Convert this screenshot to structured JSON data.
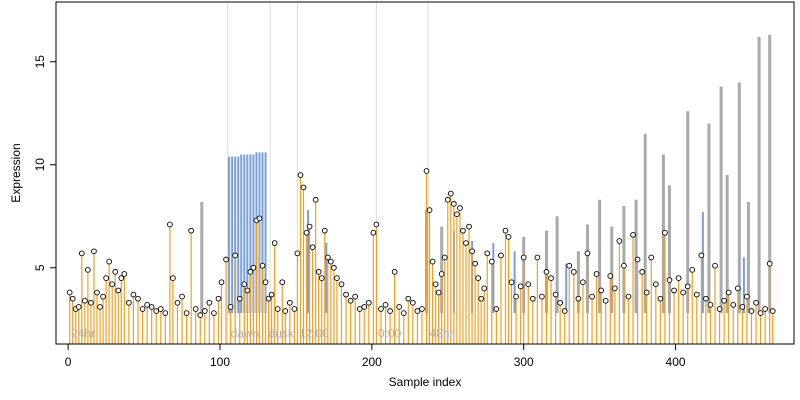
{
  "chart_data": {
    "type": "line",
    "xlabel": "Sample index",
    "ylabel": "Expression",
    "xlim": [
      -8,
      478
    ],
    "ylim": [
      1.3,
      17.9
    ],
    "x_ticks": [
      0,
      100,
      200,
      300,
      400
    ],
    "y_ticks": [
      5,
      10,
      15
    ],
    "grid": false,
    "legend": "none",
    "colors": {
      "gray_line": "#aaaaaa",
      "blue_line": "#7a9fd8",
      "orange_stem": "#f0a020",
      "points": "#000000",
      "vertical_guides": "#dddddd",
      "annotation": "#b0b0b0",
      "axis": "#000000"
    },
    "annotations": [
      {
        "text": "24hr",
        "x": 2,
        "y": 1.8
      },
      {
        "text": "dawn",
        "x": 107,
        "y": 1.8
      },
      {
        "text": "dusk",
        "x": 132,
        "y": 1.8
      },
      {
        "text": "12:00",
        "x": 152,
        "y": 1.8
      },
      {
        "text": "0:00",
        "x": 204,
        "y": 1.8
      },
      {
        "text": "48hr",
        "x": 238,
        "y": 1.8
      }
    ],
    "vertical_guides": [
      105,
      133,
      151,
      203,
      237
    ],
    "baseline": 2.8,
    "gray_peaks": [
      {
        "x": 88,
        "y": 8.2
      },
      {
        "x": 236,
        "y": 7.8
      },
      {
        "x": 246,
        "y": 7.0
      },
      {
        "x": 300,
        "y": 6.5
      },
      {
        "x": 315,
        "y": 6.8
      },
      {
        "x": 322,
        "y": 7.5
      },
      {
        "x": 336,
        "y": 5.8
      },
      {
        "x": 342,
        "y": 7.1
      },
      {
        "x": 350,
        "y": 8.3
      },
      {
        "x": 358,
        "y": 7.0
      },
      {
        "x": 366,
        "y": 8.0
      },
      {
        "x": 374,
        "y": 8.3
      },
      {
        "x": 380,
        "y": 11.5
      },
      {
        "x": 392,
        "y": 10.5
      },
      {
        "x": 396,
        "y": 9.0
      },
      {
        "x": 408,
        "y": 12.6
      },
      {
        "x": 422,
        "y": 12.0
      },
      {
        "x": 430,
        "y": 13.8
      },
      {
        "x": 434,
        "y": 9.5
      },
      {
        "x": 442,
        "y": 14.0
      },
      {
        "x": 448,
        "y": 8.2
      },
      {
        "x": 455,
        "y": 16.2
      },
      {
        "x": 462,
        "y": 16.3
      }
    ],
    "blue_peaks": [
      {
        "x": 106,
        "y": 10.4
      },
      {
        "x": 108,
        "y": 10.4
      },
      {
        "x": 110,
        "y": 10.4
      },
      {
        "x": 112,
        "y": 10.4
      },
      {
        "x": 114,
        "y": 10.5
      },
      {
        "x": 116,
        "y": 10.5
      },
      {
        "x": 118,
        "y": 10.5
      },
      {
        "x": 120,
        "y": 10.5
      },
      {
        "x": 122,
        "y": 10.5
      },
      {
        "x": 124,
        "y": 10.6
      },
      {
        "x": 126,
        "y": 10.6
      },
      {
        "x": 128,
        "y": 10.6
      },
      {
        "x": 130,
        "y": 10.6
      },
      {
        "x": 158,
        "y": 7.8
      },
      {
        "x": 170,
        "y": 6.2
      },
      {
        "x": 254,
        "y": 6.8
      },
      {
        "x": 266,
        "y": 6.3
      },
      {
        "x": 280,
        "y": 6.2
      },
      {
        "x": 294,
        "y": 5.8
      },
      {
        "x": 328,
        "y": 5.2
      },
      {
        "x": 418,
        "y": 7.7
      },
      {
        "x": 445,
        "y": 5.5
      }
    ],
    "points": [
      [
        1,
        3.8
      ],
      [
        3,
        3.5
      ],
      [
        5,
        3.0
      ],
      [
        7,
        3.1
      ],
      [
        9,
        5.7
      ],
      [
        11,
        3.4
      ],
      [
        13,
        4.9
      ],
      [
        15,
        3.3
      ],
      [
        17,
        5.8
      ],
      [
        19,
        3.8
      ],
      [
        21,
        3.1
      ],
      [
        23,
        3.6
      ],
      [
        25,
        4.5
      ],
      [
        27,
        5.3
      ],
      [
        29,
        4.2
      ],
      [
        31,
        4.8
      ],
      [
        33,
        3.9
      ],
      [
        35,
        4.5
      ],
      [
        37,
        4.7
      ],
      [
        40,
        3.3
      ],
      [
        43,
        3.7
      ],
      [
        46,
        3.5
      ],
      [
        49,
        3.0
      ],
      [
        52,
        3.2
      ],
      [
        55,
        3.1
      ],
      [
        58,
        2.9
      ],
      [
        61,
        3.0
      ],
      [
        64,
        2.8
      ],
      [
        67,
        7.1
      ],
      [
        69,
        4.5
      ],
      [
        72,
        3.3
      ],
      [
        75,
        3.6
      ],
      [
        78,
        2.8
      ],
      [
        81,
        6.8
      ],
      [
        84,
        3.0
      ],
      [
        87,
        2.7
      ],
      [
        90,
        2.9
      ],
      [
        93,
        3.3
      ],
      [
        96,
        2.8
      ],
      [
        99,
        3.5
      ],
      [
        101,
        4.3
      ],
      [
        104,
        5.4
      ],
      [
        107,
        3.1
      ],
      [
        110,
        5.6
      ],
      [
        113,
        3.5
      ],
      [
        116,
        4.2
      ],
      [
        118,
        3.9
      ],
      [
        120,
        4.8
      ],
      [
        122,
        5.0
      ],
      [
        124,
        7.3
      ],
      [
        126,
        7.4
      ],
      [
        128,
        5.1
      ],
      [
        130,
        4.3
      ],
      [
        132,
        3.5
      ],
      [
        134,
        3.7
      ],
      [
        136,
        6.2
      ],
      [
        138,
        3.0
      ],
      [
        141,
        4.3
      ],
      [
        143,
        2.9
      ],
      [
        146,
        3.3
      ],
      [
        149,
        3.0
      ],
      [
        151,
        5.7
      ],
      [
        153,
        9.5
      ],
      [
        155,
        8.9
      ],
      [
        157,
        6.7
      ],
      [
        159,
        7.0
      ],
      [
        161,
        6.0
      ],
      [
        163,
        8.3
      ],
      [
        165,
        4.8
      ],
      [
        167,
        4.5
      ],
      [
        169,
        6.8
      ],
      [
        171,
        5.5
      ],
      [
        173,
        5.3
      ],
      [
        175,
        5.0
      ],
      [
        177,
        4.5
      ],
      [
        180,
        4.2
      ],
      [
        183,
        3.7
      ],
      [
        186,
        3.4
      ],
      [
        189,
        3.6
      ],
      [
        192,
        3.0
      ],
      [
        195,
        3.1
      ],
      [
        198,
        3.3
      ],
      [
        201,
        6.7
      ],
      [
        203,
        7.1
      ],
      [
        206,
        3.0
      ],
      [
        209,
        3.2
      ],
      [
        212,
        2.9
      ],
      [
        215,
        4.8
      ],
      [
        218,
        3.1
      ],
      [
        221,
        2.8
      ],
      [
        224,
        3.5
      ],
      [
        227,
        3.3
      ],
      [
        230,
        2.9
      ],
      [
        233,
        3.0
      ],
      [
        236,
        9.7
      ],
      [
        238,
        7.8
      ],
      [
        240,
        5.3
      ],
      [
        242,
        4.2
      ],
      [
        244,
        3.8
      ],
      [
        246,
        4.7
      ],
      [
        248,
        5.5
      ],
      [
        250,
        8.3
      ],
      [
        252,
        8.6
      ],
      [
        254,
        8.1
      ],
      [
        256,
        7.6
      ],
      [
        258,
        7.9
      ],
      [
        260,
        6.8
      ],
      [
        262,
        6.2
      ],
      [
        264,
        7.0
      ],
      [
        266,
        5.8
      ],
      [
        268,
        5.2
      ],
      [
        270,
        4.5
      ],
      [
        272,
        3.5
      ],
      [
        274,
        4.0
      ],
      [
        276,
        5.7
      ],
      [
        279,
        5.3
      ],
      [
        282,
        3.0
      ],
      [
        285,
        5.6
      ],
      [
        288,
        6.8
      ],
      [
        290,
        6.5
      ],
      [
        292,
        4.3
      ],
      [
        295,
        3.6
      ],
      [
        298,
        4.1
      ],
      [
        300,
        5.5
      ],
      [
        303,
        4.2
      ],
      [
        306,
        3.5
      ],
      [
        309,
        5.5
      ],
      [
        312,
        3.6
      ],
      [
        315,
        4.8
      ],
      [
        318,
        4.5
      ],
      [
        321,
        3.7
      ],
      [
        324,
        3.3
      ],
      [
        327,
        2.9
      ],
      [
        330,
        5.1
      ],
      [
        333,
        4.8
      ],
      [
        336,
        3.5
      ],
      [
        339,
        4.3
      ],
      [
        342,
        5.7
      ],
      [
        345,
        3.6
      ],
      [
        348,
        4.7
      ],
      [
        351,
        3.9
      ],
      [
        354,
        3.4
      ],
      [
        357,
        4.6
      ],
      [
        360,
        4.0
      ],
      [
        363,
        6.3
      ],
      [
        366,
        5.1
      ],
      [
        369,
        3.6
      ],
      [
        372,
        6.6
      ],
      [
        375,
        5.4
      ],
      [
        378,
        4.8
      ],
      [
        381,
        3.8
      ],
      [
        384,
        5.5
      ],
      [
        387,
        4.2
      ],
      [
        390,
        3.5
      ],
      [
        393,
        6.7
      ],
      [
        396,
        4.4
      ],
      [
        399,
        3.9
      ],
      [
        402,
        4.5
      ],
      [
        405,
        3.8
      ],
      [
        408,
        4.1
      ],
      [
        411,
        4.9
      ],
      [
        414,
        3.7
      ],
      [
        417,
        5.6
      ],
      [
        420,
        3.5
      ],
      [
        423,
        3.2
      ],
      [
        426,
        5.1
      ],
      [
        429,
        3.0
      ],
      [
        432,
        3.4
      ],
      [
        435,
        3.8
      ],
      [
        438,
        3.2
      ],
      [
        441,
        4.0
      ],
      [
        444,
        3.1
      ],
      [
        447,
        3.6
      ],
      [
        450,
        2.9
      ],
      [
        453,
        3.3
      ],
      [
        456,
        2.8
      ],
      [
        459,
        3.0
      ],
      [
        462,
        5.2
      ],
      [
        464,
        2.9
      ]
    ]
  }
}
